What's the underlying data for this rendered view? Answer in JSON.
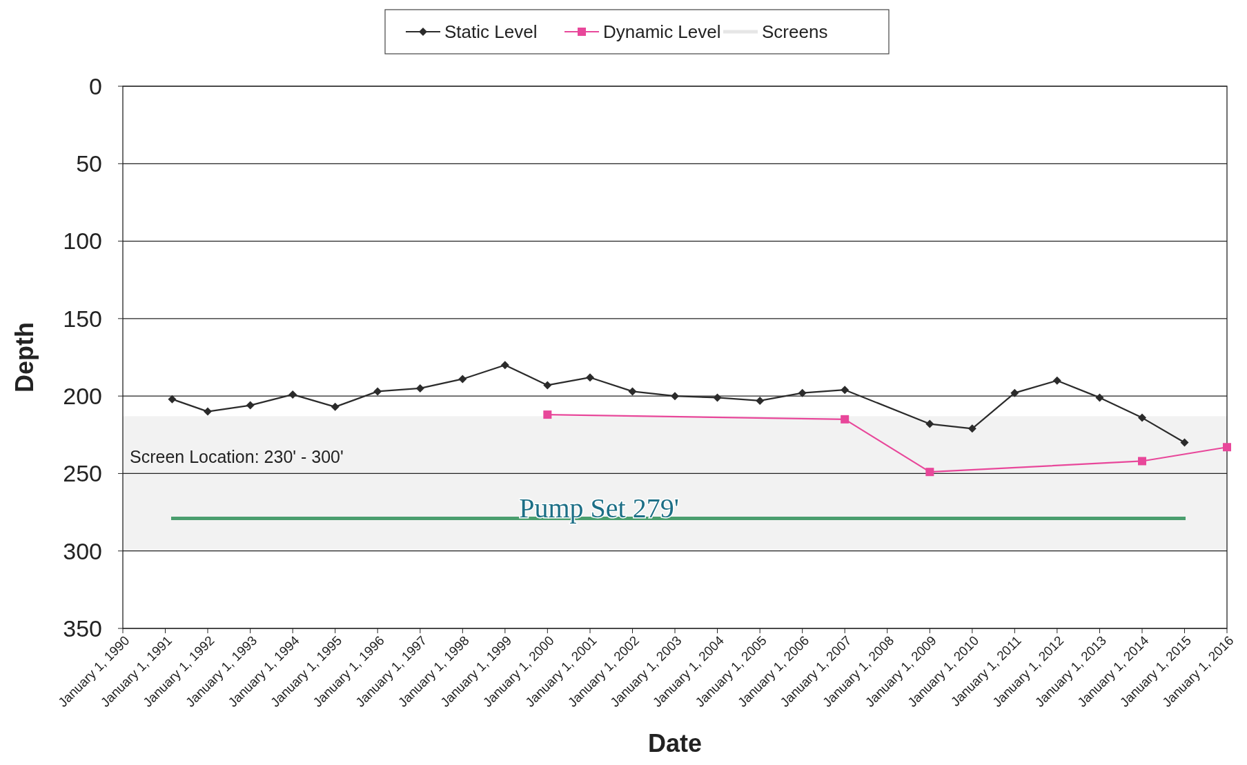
{
  "chart_data": {
    "type": "line",
    "xlabel": "Date",
    "ylabel": "Depth",
    "ylim": [
      350,
      0
    ],
    "yticks": [
      0,
      50,
      100,
      150,
      200,
      250,
      300,
      350
    ],
    "xlim": [
      "1990-01-01",
      "2016-01-01"
    ],
    "xticks": [
      {
        "value": "1990-01-01",
        "label": "January 1, 1990"
      },
      {
        "value": "1991-01-01",
        "label": "January 1, 1991"
      },
      {
        "value": "1992-01-01",
        "label": "January 1, 1992"
      },
      {
        "value": "1993-01-01",
        "label": "January 1, 1993"
      },
      {
        "value": "1994-01-01",
        "label": "January 1, 1994"
      },
      {
        "value": "1995-01-01",
        "label": "January 1, 1995"
      },
      {
        "value": "1996-01-01",
        "label": "January 1, 1996"
      },
      {
        "value": "1997-01-01",
        "label": "January 1, 1997"
      },
      {
        "value": "1998-01-01",
        "label": "January 1, 1998"
      },
      {
        "value": "1999-01-01",
        "label": "January 1, 1999"
      },
      {
        "value": "2000-01-01",
        "label": "January 1, 2000"
      },
      {
        "value": "2001-01-01",
        "label": "January 1, 2001"
      },
      {
        "value": "2002-01-01",
        "label": "January 1, 2002"
      },
      {
        "value": "2003-01-01",
        "label": "January 1, 2003"
      },
      {
        "value": "2004-01-01",
        "label": "January 1, 2004"
      },
      {
        "value": "2005-01-01",
        "label": "January 1, 2005"
      },
      {
        "value": "2006-01-01",
        "label": "January 1, 2006"
      },
      {
        "value": "2007-01-01",
        "label": "January 1, 2007"
      },
      {
        "value": "2008-01-01",
        "label": "January 1, 2008"
      },
      {
        "value": "2009-01-01",
        "label": "January 1, 2009"
      },
      {
        "value": "2010-01-01",
        "label": "January 1, 2010"
      },
      {
        "value": "2011-01-01",
        "label": "January 1, 2011"
      },
      {
        "value": "2012-01-01",
        "label": "January 1, 2012"
      },
      {
        "value": "2013-01-01",
        "label": "January 1, 2013"
      },
      {
        "value": "2014-01-01",
        "label": "January 1, 2014"
      },
      {
        "value": "2015-01-01",
        "label": "January 1, 2015"
      },
      {
        "value": "2016-01-01",
        "label": "January 1, 2016"
      }
    ],
    "grid": "y",
    "legend": "top",
    "series": [
      {
        "name": "Static Level",
        "color": "#2b2b2b",
        "marker": "diamond",
        "x": [
          "1991-03-01",
          "1992-01-01",
          "1993-01-01",
          "1994-01-01",
          "1995-01-01",
          "1996-01-01",
          "1997-01-01",
          "1998-01-01",
          "1999-01-01",
          "2000-01-01",
          "2001-01-01",
          "2002-01-01",
          "2003-01-01",
          "2004-01-01",
          "2005-01-01",
          "2006-01-01",
          "2007-01-01",
          "2009-01-01",
          "2010-01-01",
          "2011-01-01",
          "2012-01-01",
          "2013-01-01",
          "2014-01-01",
          "2015-01-01"
        ],
        "values": [
          202,
          210,
          206,
          199,
          207,
          197,
          195,
          189,
          180,
          193,
          188,
          197,
          200,
          201,
          203,
          198,
          196,
          218,
          221,
          198,
          190,
          201,
          214,
          230
        ]
      },
      {
        "name": "Dynamic Level",
        "color": "#e8479a",
        "marker": "square",
        "x": [
          "2000-01-01",
          "2007-01-01",
          "2009-01-01",
          "2014-01-01",
          "2016-01-01"
        ],
        "values": [
          212,
          215,
          249,
          242,
          233
        ]
      }
    ],
    "bands": [
      {
        "axis": "y",
        "from": 213,
        "to": 300,
        "label": "Screens",
        "color": "#e6e6e6"
      }
    ],
    "ref_lines": [
      {
        "axis": "y",
        "value": 279,
        "label": "Pump Set 279'",
        "color": "#4a9e6e"
      }
    ],
    "annotations": [
      "Screen Location: 230' - 300'"
    ]
  }
}
